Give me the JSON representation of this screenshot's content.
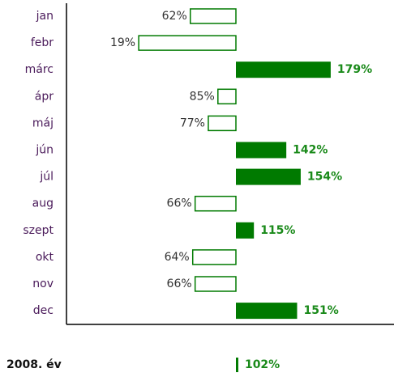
{
  "chart_data": {
    "type": "bar",
    "orientation": "horizontal",
    "baseline": 100,
    "color": "#007a00",
    "categories": [
      "jan",
      "febr",
      "márc",
      "ápr",
      "máj",
      "jún",
      "júl",
      "aug",
      "szept",
      "okt",
      "nov",
      "dec"
    ],
    "values": [
      62,
      19,
      179,
      85,
      77,
      142,
      154,
      66,
      115,
      64,
      66,
      151
    ],
    "value_labels": [
      "62%",
      "19%",
      "179%",
      "85%",
      "77%",
      "142%",
      "154%",
      "66%",
      "115%",
      "64%",
      "66%",
      "151%"
    ],
    "total": {
      "label": "2008. év",
      "value": 102,
      "value_label": "102%"
    }
  }
}
